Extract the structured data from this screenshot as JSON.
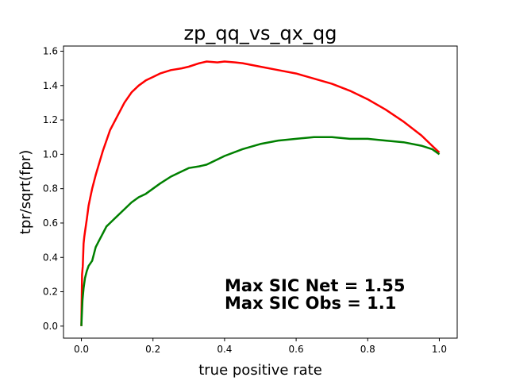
{
  "chart_data": {
    "type": "line",
    "title": "zp_qq_vs_qx_qg",
    "xlabel": "true positive rate",
    "ylabel": "tpr/sqrt(fpr)",
    "xlim": [
      -0.05,
      1.05
    ],
    "ylim": [
      -0.07,
      1.63
    ],
    "grid": false,
    "x_ticks": [
      "0.0",
      "0.2",
      "0.4",
      "0.6",
      "0.8",
      "1.0"
    ],
    "y_ticks": [
      "0.0",
      "0.2",
      "0.4",
      "0.6",
      "0.8",
      "1.0",
      "1.2",
      "1.4",
      "1.6"
    ],
    "annotations": [
      "Max SIC Net = 1.55",
      "Max SIC Obs = 1.1"
    ],
    "series": [
      {
        "color": "#ff0000",
        "x": [
          0.0,
          0.002,
          0.004,
          0.006,
          0.008,
          0.01,
          0.015,
          0.02,
          0.025,
          0.03,
          0.04,
          0.05,
          0.06,
          0.07,
          0.08,
          0.09,
          0.1,
          0.12,
          0.14,
          0.16,
          0.18,
          0.2,
          0.22,
          0.25,
          0.28,
          0.3,
          0.33,
          0.35,
          0.38,
          0.4,
          0.43,
          0.45,
          0.5,
          0.55,
          0.6,
          0.65,
          0.7,
          0.75,
          0.8,
          0.85,
          0.9,
          0.95,
          0.98,
          1.0
        ],
        "y": [
          0.0,
          0.3,
          0.35,
          0.48,
          0.52,
          0.55,
          0.62,
          0.7,
          0.75,
          0.8,
          0.88,
          0.95,
          1.02,
          1.08,
          1.14,
          1.18,
          1.22,
          1.3,
          1.36,
          1.4,
          1.43,
          1.45,
          1.47,
          1.49,
          1.5,
          1.51,
          1.53,
          1.54,
          1.535,
          1.54,
          1.535,
          1.53,
          1.51,
          1.49,
          1.47,
          1.44,
          1.41,
          1.37,
          1.32,
          1.26,
          1.19,
          1.11,
          1.05,
          1.01
        ]
      },
      {
        "color": "#008000",
        "x": [
          0.0,
          0.003,
          0.006,
          0.01,
          0.015,
          0.02,
          0.03,
          0.04,
          0.05,
          0.06,
          0.07,
          0.08,
          0.09,
          0.1,
          0.12,
          0.14,
          0.16,
          0.18,
          0.2,
          0.22,
          0.25,
          0.28,
          0.3,
          0.33,
          0.35,
          0.38,
          0.4,
          0.45,
          0.5,
          0.55,
          0.6,
          0.65,
          0.7,
          0.75,
          0.8,
          0.85,
          0.9,
          0.95,
          0.98,
          1.0
        ],
        "y": [
          0.0,
          0.15,
          0.22,
          0.28,
          0.32,
          0.35,
          0.38,
          0.46,
          0.5,
          0.54,
          0.58,
          0.6,
          0.62,
          0.64,
          0.68,
          0.72,
          0.75,
          0.77,
          0.8,
          0.83,
          0.87,
          0.9,
          0.92,
          0.93,
          0.94,
          0.97,
          0.99,
          1.03,
          1.06,
          1.08,
          1.09,
          1.1,
          1.1,
          1.09,
          1.09,
          1.08,
          1.07,
          1.05,
          1.03,
          1.0
        ]
      }
    ]
  }
}
